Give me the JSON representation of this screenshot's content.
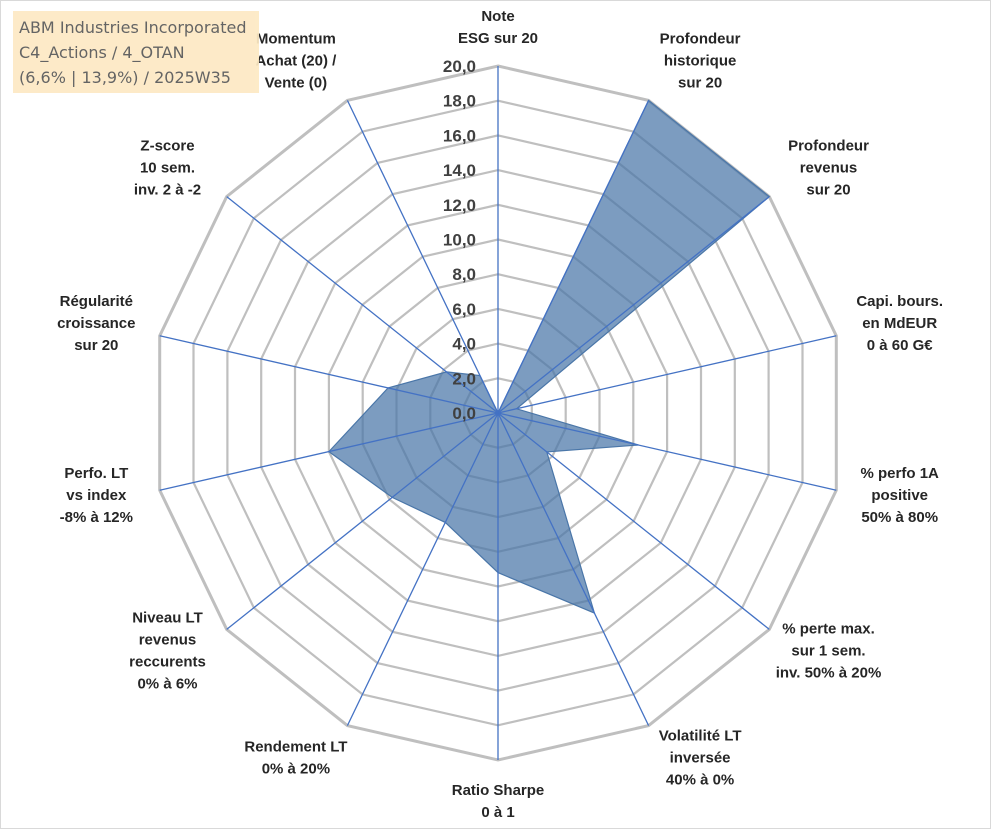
{
  "info_box": {
    "line1": "ABM Industries Incorporated",
    "line2": "C4_Actions / 4_OTAN",
    "line3": "(6,6% | 13,9%) / 2025W35"
  },
  "colors": {
    "fill": "#4a76a8",
    "spoke": "#4472c4",
    "grid": "#bfbfbf"
  },
  "chart_data": {
    "type": "radar",
    "scale": {
      "min": 0,
      "max": 20,
      "step": 2
    },
    "tick_labels": [
      "0,0",
      "2,0",
      "4,0",
      "6,0",
      "8,0",
      "10,0",
      "12,0",
      "14,0",
      "16,0",
      "18,0",
      "20,0"
    ],
    "grid": true,
    "axes": [
      {
        "label": [
          "Note",
          "ESG sur 20"
        ],
        "value": 0
      },
      {
        "label": [
          "Profondeur",
          "historique",
          "sur 20"
        ],
        "value": 20
      },
      {
        "label": [
          "Profondeur",
          "revenus",
          "sur 20"
        ],
        "value": 20
      },
      {
        "label": [
          "Capi. bours.",
          "en MdEUR",
          "0 à 60 G€"
        ],
        "value": 1.1
      },
      {
        "label": [
          "% perfo 1A",
          "positive",
          "50% à 80%"
        ],
        "value": 8.3
      },
      {
        "label": [
          "% perte max.",
          "sur 1 sem.",
          "inv. 50% à 20%"
        ],
        "value": 3.6
      },
      {
        "label": [
          "Volatilité LT",
          "inversée",
          "40% à 0%"
        ],
        "value": 12.8
      },
      {
        "label": [
          "Ratio Sharpe",
          "0 à 1"
        ],
        "value": 9.2
      },
      {
        "label": [
          "Rendement LT",
          "0% à 20%"
        ],
        "value": 7.0
      },
      {
        "label": [
          "Niveau LT",
          "revenus",
          "reccurents",
          "0% à 6%"
        ],
        "value": 7.8
      },
      {
        "label": [
          "Perfo. LT",
          "vs index",
          "-8% à 12%"
        ],
        "value": 10.0
      },
      {
        "label": [
          "Régularité",
          "croissance",
          "sur 20"
        ],
        "value": 6.5
      },
      {
        "label": [
          "Z-score",
          "10 sem.",
          "inv. 2 à -2"
        ],
        "value": 3.8
      },
      {
        "label": [
          "Momentum",
          "Achat (20) /",
          "Vente (0)"
        ],
        "value": 2.4
      }
    ]
  }
}
